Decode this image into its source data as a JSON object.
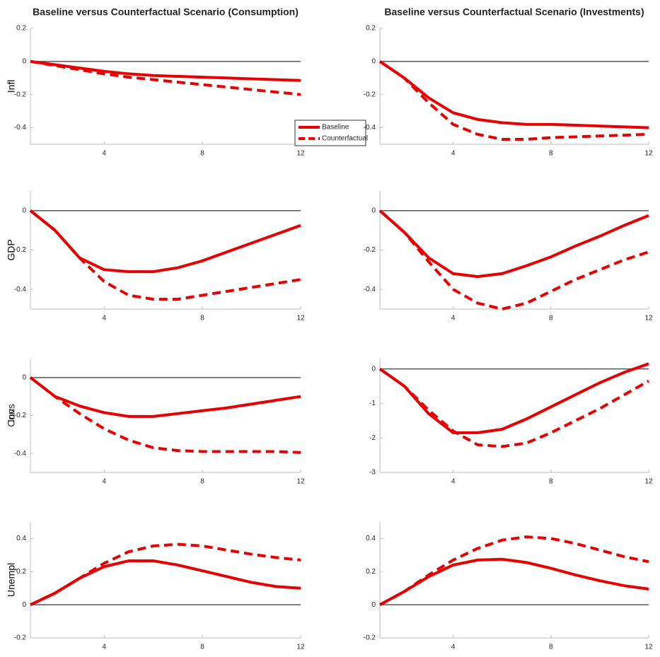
{
  "chart_data": [
    {
      "type": "line",
      "title": "Baseline versus Counterfactual Scenario (Consumption)",
      "ylabel": "Infl",
      "x": [
        1,
        2,
        3,
        4,
        5,
        6,
        7,
        8,
        9,
        10,
        11,
        12
      ],
      "xlim": [
        1,
        12
      ],
      "xticks": [
        4,
        8,
        12
      ],
      "ylim": [
        -0.5,
        0.2
      ],
      "yticks": [
        -0.4,
        -0.2,
        0,
        0.2
      ],
      "zero_line": true,
      "legend": "bottom-right",
      "series": [
        {
          "name": "Baseline",
          "color": "#e60000",
          "style": "solid",
          "values": [
            0,
            -0.02,
            -0.04,
            -0.06,
            -0.075,
            -0.085,
            -0.09,
            -0.095,
            -0.1,
            -0.105,
            -0.11,
            -0.115
          ]
        },
        {
          "name": "Counterfactual",
          "color": "#e60000",
          "style": "dashed",
          "values": [
            0,
            -0.025,
            -0.05,
            -0.075,
            -0.095,
            -0.11,
            -0.125,
            -0.14,
            -0.155,
            -0.17,
            -0.185,
            -0.2
          ]
        }
      ]
    },
    {
      "type": "line",
      "title": "Baseline versus Counterfactual Scenario  (Investments)",
      "ylabel": "Infl",
      "x": [
        1,
        2,
        3,
        4,
        5,
        6,
        7,
        8,
        9,
        10,
        11,
        12
      ],
      "xlim": [
        1,
        12
      ],
      "xticks": [
        4,
        8,
        12
      ],
      "ylim": [
        -0.5,
        0.2
      ],
      "yticks": [
        -0.4,
        -0.2,
        0,
        0.2
      ],
      "zero_line": true,
      "series": [
        {
          "color": "#e60000",
          "style": "solid",
          "values": [
            0,
            -0.1,
            -0.22,
            -0.31,
            -0.35,
            -0.37,
            -0.38,
            -0.38,
            -0.385,
            -0.39,
            -0.395,
            -0.4
          ]
        },
        {
          "color": "#e60000",
          "style": "dashed",
          "values": [
            0,
            -0.1,
            -0.25,
            -0.38,
            -0.44,
            -0.47,
            -0.47,
            -0.46,
            -0.455,
            -0.45,
            -0.445,
            -0.44
          ]
        }
      ]
    },
    {
      "type": "line",
      "ylabel": "GDP",
      "x": [
        1,
        2,
        3,
        4,
        5,
        6,
        7,
        8,
        9,
        10,
        11,
        12
      ],
      "xlim": [
        1,
        12
      ],
      "xticks": [
        4,
        8,
        12
      ],
      "ylim": [
        -0.5,
        0.1
      ],
      "yticks": [
        -0.4,
        -0.2,
        0
      ],
      "zero_line": true,
      "series": [
        {
          "color": "#e60000",
          "style": "solid",
          "values": [
            0,
            -0.1,
            -0.24,
            -0.3,
            -0.31,
            -0.31,
            -0.29,
            -0.255,
            -0.21,
            -0.165,
            -0.12,
            -0.075
          ]
        },
        {
          "color": "#e60000",
          "style": "dashed",
          "values": [
            0,
            -0.1,
            -0.24,
            -0.36,
            -0.43,
            -0.45,
            -0.45,
            -0.43,
            -0.41,
            -0.39,
            -0.37,
            -0.35
          ]
        }
      ]
    },
    {
      "type": "line",
      "ylabel": "GDP",
      "x": [
        1,
        2,
        3,
        4,
        5,
        6,
        7,
        8,
        9,
        10,
        11,
        12
      ],
      "xlim": [
        1,
        12
      ],
      "xticks": [
        4,
        8,
        12
      ],
      "ylim": [
        -0.5,
        0.1
      ],
      "yticks": [
        -0.4,
        -0.2,
        0
      ],
      "zero_line": true,
      "series": [
        {
          "color": "#e60000",
          "style": "solid",
          "values": [
            0,
            -0.11,
            -0.24,
            -0.32,
            -0.335,
            -0.32,
            -0.28,
            -0.235,
            -0.18,
            -0.13,
            -0.075,
            -0.025
          ]
        },
        {
          "color": "#e60000",
          "style": "dashed",
          "values": [
            0,
            -0.11,
            -0.26,
            -0.4,
            -0.47,
            -0.5,
            -0.47,
            -0.41,
            -0.35,
            -0.3,
            -0.25,
            -0.21
          ]
        }
      ]
    },
    {
      "type": "line",
      "ylabel": "Cons",
      "x": [
        1,
        2,
        3,
        4,
        5,
        6,
        7,
        8,
        9,
        10,
        11,
        12
      ],
      "xlim": [
        1,
        12
      ],
      "xticks": [
        4,
        8,
        12
      ],
      "ylim": [
        -0.5,
        0.1
      ],
      "yticks": [
        -0.4,
        -0.2,
        0
      ],
      "zero_line": true,
      "series": [
        {
          "color": "#e60000",
          "style": "solid",
          "values": [
            0,
            -0.1,
            -0.15,
            -0.185,
            -0.205,
            -0.205,
            -0.19,
            -0.175,
            -0.16,
            -0.14,
            -0.12,
            -0.1
          ]
        },
        {
          "color": "#e60000",
          "style": "dashed",
          "values": [
            0,
            -0.1,
            -0.19,
            -0.27,
            -0.33,
            -0.37,
            -0.385,
            -0.39,
            -0.39,
            -0.39,
            -0.39,
            -0.395
          ]
        }
      ]
    },
    {
      "type": "line",
      "ylabel": "Inv",
      "x": [
        1,
        2,
        3,
        4,
        5,
        6,
        7,
        8,
        9,
        10,
        11,
        12
      ],
      "xlim": [
        1,
        12
      ],
      "xticks": [
        4,
        8,
        12
      ],
      "ylim": [
        -3,
        0.3
      ],
      "yticks": [
        -3,
        -2,
        -1,
        0
      ],
      "zero_line": true,
      "series": [
        {
          "color": "#e60000",
          "style": "solid",
          "values": [
            0,
            -0.5,
            -1.3,
            -1.85,
            -1.85,
            -1.75,
            -1.45,
            -1.1,
            -0.75,
            -0.4,
            -0.1,
            0.15
          ]
        },
        {
          "color": "#e60000",
          "style": "dashed",
          "values": [
            0,
            -0.5,
            -1.2,
            -1.8,
            -2.2,
            -2.25,
            -2.15,
            -1.85,
            -1.5,
            -1.15,
            -0.75,
            -0.35
          ]
        }
      ]
    },
    {
      "type": "line",
      "ylabel": "Unempl",
      "x": [
        1,
        2,
        3,
        4,
        5,
        6,
        7,
        8,
        9,
        10,
        11,
        12
      ],
      "xlim": [
        1,
        12
      ],
      "xticks": [
        4,
        8,
        12
      ],
      "ylim": [
        -0.2,
        0.5
      ],
      "yticks": [
        -0.2,
        0,
        0.2,
        0.4
      ],
      "zero_line": true,
      "series": [
        {
          "color": "#e60000",
          "style": "solid",
          "values": [
            0,
            0.07,
            0.16,
            0.23,
            0.265,
            0.265,
            0.24,
            0.205,
            0.17,
            0.135,
            0.11,
            0.1
          ]
        },
        {
          "color": "#e60000",
          "style": "dashed",
          "values": [
            0,
            0.07,
            0.16,
            0.25,
            0.32,
            0.355,
            0.365,
            0.355,
            0.33,
            0.305,
            0.285,
            0.27
          ]
        }
      ]
    },
    {
      "type": "line",
      "ylabel": "Unempl",
      "x": [
        1,
        2,
        3,
        4,
        5,
        6,
        7,
        8,
        9,
        10,
        11,
        12
      ],
      "xlim": [
        1,
        12
      ],
      "xticks": [
        4,
        8,
        12
      ],
      "ylim": [
        -0.2,
        0.5
      ],
      "yticks": [
        -0.2,
        0,
        0.2,
        0.4
      ],
      "zero_line": true,
      "series": [
        {
          "color": "#e60000",
          "style": "solid",
          "values": [
            0,
            0.08,
            0.17,
            0.24,
            0.27,
            0.275,
            0.255,
            0.22,
            0.18,
            0.145,
            0.115,
            0.095
          ]
        },
        {
          "color": "#e60000",
          "style": "dashed",
          "values": [
            0,
            0.08,
            0.18,
            0.27,
            0.34,
            0.39,
            0.41,
            0.4,
            0.37,
            0.33,
            0.29,
            0.26
          ]
        }
      ]
    }
  ]
}
